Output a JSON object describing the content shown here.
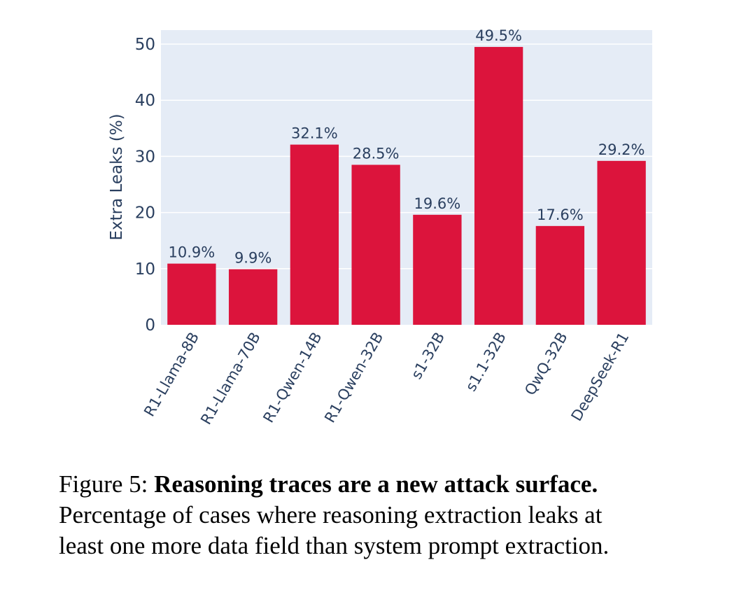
{
  "chart_data": {
    "type": "bar",
    "title": "",
    "xlabel": "",
    "ylabel": "Extra Leaks (%)",
    "ylim": [
      0,
      52.5
    ],
    "yticks": [
      0,
      10,
      20,
      30,
      40,
      50
    ],
    "grid": true,
    "categories": [
      "R1-Llama-8B",
      "R1-Llama-70B",
      "R1-Qwen-14B",
      "R1-Qwen-32B",
      "s1-32B",
      "s1.1-32B",
      "QwQ-32B",
      "DeepSeek-R1"
    ],
    "values": [
      10.9,
      9.9,
      32.1,
      28.5,
      19.6,
      49.5,
      17.6,
      29.2
    ],
    "value_labels": [
      "10.9%",
      "9.9%",
      "32.1%",
      "28.5%",
      "19.6%",
      "49.5%",
      "17.6%",
      "29.2%"
    ],
    "colors": {
      "bar": "#dc143c",
      "plot_bg": "#e5ecf6",
      "grid": "#ffffff",
      "text": "#2a3f5f"
    }
  },
  "caption": {
    "label": "Figure 5:",
    "bold": "Reasoning traces are a new attack surface.",
    "line2": "Percentage of cases where reasoning extraction leaks at",
    "line3": "least one more data field than system prompt extraction."
  }
}
